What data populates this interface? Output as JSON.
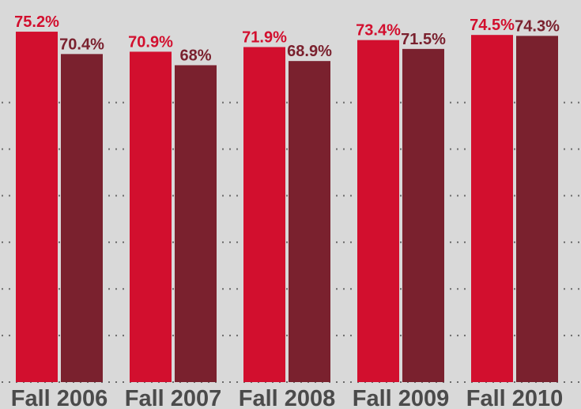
{
  "chart_data": {
    "type": "bar",
    "categories": [
      "Fall 2006",
      "Fall 2007",
      "Fall 2008",
      "Fall 2009",
      "Fall 2010"
    ],
    "series": [
      {
        "color": "#d20f2e",
        "values": [
          75.2,
          70.9,
          71.9,
          73.4,
          74.5
        ],
        "value_labels": [
          "75.2%",
          "70.9%",
          "71.9%",
          "73.4%",
          "74.5%"
        ]
      },
      {
        "color": "#7a212e",
        "values": [
          70.4,
          68,
          68.9,
          71.5,
          74.3
        ],
        "value_labels": [
          "70.4%",
          "68%",
          "68.9%",
          "71.5%",
          "74.3%"
        ]
      }
    ],
    "ylim": [
      0,
      82
    ],
    "yticks": [
      0,
      10,
      20,
      30,
      40,
      50,
      60
    ],
    "grid": true
  }
}
